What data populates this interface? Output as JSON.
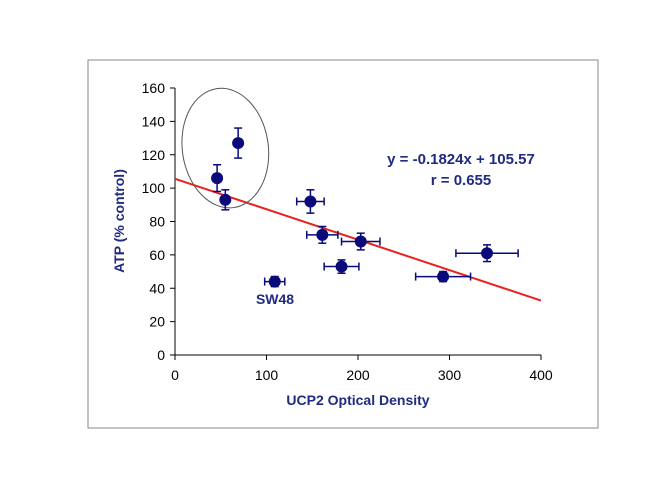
{
  "chart_data": {
    "type": "scatter",
    "xlabel": "UCP2 Optical Density",
    "ylabel": "ATP (% control)",
    "xlim": [
      0,
      400
    ],
    "ylim": [
      0,
      160
    ],
    "xticks": [
      "0",
      "100",
      "200",
      "300",
      "400"
    ],
    "yticks": [
      "0",
      "20",
      "40",
      "60",
      "80",
      "100",
      "120",
      "140",
      "160"
    ],
    "grid": false,
    "points": [
      {
        "x": 46,
        "y": 106,
        "xerr": 3,
        "yerr": 8
      },
      {
        "x": 55,
        "y": 93,
        "xerr": 3,
        "yerr": 6
      },
      {
        "x": 69,
        "y": 127,
        "xerr": 3,
        "yerr": 9
      },
      {
        "x": 109,
        "y": 44,
        "xerr": 11,
        "yerr": 3,
        "label": "SW48"
      },
      {
        "x": 148,
        "y": 92,
        "xerr": 15,
        "yerr": 7
      },
      {
        "x": 161,
        "y": 72,
        "xerr": 17,
        "yerr": 5
      },
      {
        "x": 182,
        "y": 53,
        "xerr": 19,
        "yerr": 4
      },
      {
        "x": 203,
        "y": 68,
        "xerr": 21,
        "yerr": 5
      },
      {
        "x": 293,
        "y": 47,
        "xerr": 30,
        "yerr": 3
      },
      {
        "x": 341,
        "y": 61,
        "xerr": 34,
        "yerr": 5
      }
    ],
    "trendline": {
      "slope": -0.1824,
      "intercept": 105.57,
      "x_range": [
        0,
        400
      ]
    },
    "annotations": {
      "equation": "y = -0.1824x + 105.57",
      "r": "r = 0.655"
    },
    "highlight_ellipse": {
      "cx": 55,
      "cy": 124,
      "rx": 47,
      "ry": 36
    },
    "colors": {
      "points": "#0a0a7a",
      "trendline": "#e8231e",
      "text": "#1f2a80",
      "ellipse": "#555555"
    }
  }
}
